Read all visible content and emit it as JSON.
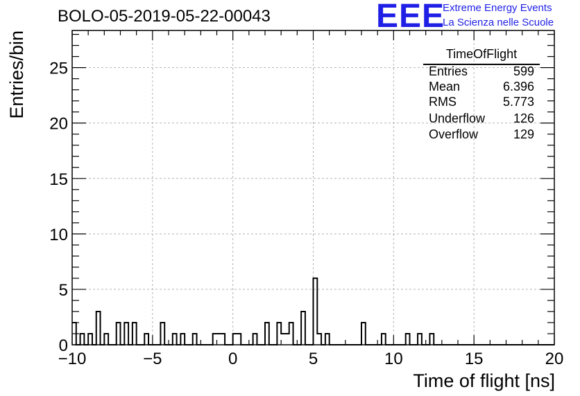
{
  "chart_data": {
    "type": "histogram",
    "title": "BOLO-05-2019-05-22-00043",
    "xlabel": "Time of flight [ns]",
    "ylabel": "Entries/bin",
    "xlim": [
      -10,
      20
    ],
    "ylim": [
      0,
      28.35
    ],
    "bin_width": 0.25,
    "xticks": [
      "−10",
      "−5",
      "0",
      "5",
      "10",
      "15",
      "20"
    ],
    "xtick_values": [
      -10,
      -5,
      0,
      5,
      10,
      15,
      20
    ],
    "yticks": [
      "0",
      "5",
      "10",
      "15",
      "20",
      "25"
    ],
    "ytick_values": [
      0,
      5,
      10,
      15,
      20,
      25
    ],
    "grid": true,
    "values": [
      2,
      0,
      1,
      0,
      1,
      0,
      3,
      0,
      1,
      0,
      0,
      2,
      0,
      2,
      0,
      2,
      0,
      0,
      1,
      0,
      0,
      0,
      2,
      0,
      0,
      1,
      0,
      1,
      0,
      0,
      1,
      0,
      0,
      0,
      0,
      1,
      1,
      1,
      0,
      0,
      1,
      1,
      0,
      0,
      0,
      1,
      0,
      0,
      2,
      0,
      0,
      2,
      1,
      1,
      2,
      0,
      0,
      3,
      0,
      0,
      6,
      1,
      0,
      1,
      0,
      0,
      0,
      0,
      0,
      0,
      0,
      0,
      2,
      0,
      0,
      0,
      0,
      1,
      0,
      0,
      0,
      0,
      0,
      1,
      0,
      0,
      1,
      0,
      0,
      1,
      0,
      0,
      0,
      0,
      0,
      0,
      0,
      0,
      0,
      0,
      0,
      0,
      0,
      0,
      0,
      0,
      0,
      0,
      0,
      0,
      0,
      0,
      0,
      0,
      0,
      0,
      0,
      0,
      0,
      0
    ]
  },
  "stats_box": {
    "title": "TimeOfFlight",
    "rows": [
      {
        "label": "Entries",
        "value": "599"
      },
      {
        "label": "Mean",
        "value": "6.396"
      },
      {
        "label": "RMS",
        "value": "5.773"
      },
      {
        "label": "Underflow",
        "value": "126"
      },
      {
        "label": "Overflow",
        "value": "129"
      }
    ]
  },
  "logo": {
    "mark": "EEE",
    "line1": "Extreme Energy Events",
    "line2": "La Scienza nelle Scuole",
    "color": "#1f1fe6"
  }
}
